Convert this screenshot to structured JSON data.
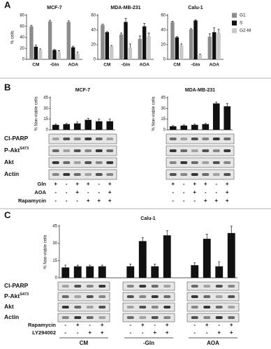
{
  "panel_labels": [
    "A",
    "B",
    "C"
  ],
  "chart_data": [
    {
      "type": "bar",
      "title": "MCF-7",
      "ylabel": "% cells",
      "categories": [
        "CM",
        "-Gln",
        "AOA"
      ],
      "series": [
        {
          "name": "G1",
          "color": "#8c8c8c",
          "values": [
            60,
            69,
            68
          ],
          "errors": [
            2,
            2,
            2
          ]
        },
        {
          "name": "S",
          "color": "#111111",
          "values": [
            23,
            17,
            22
          ],
          "errors": [
            3,
            1,
            2
          ]
        },
        {
          "name": "G2-M",
          "color": "#c8c8c8",
          "values": [
            17,
            14,
            10
          ],
          "errors": [
            2,
            2,
            3
          ]
        }
      ],
      "ylim": [
        0,
        80
      ],
      "yticks": [
        0,
        20,
        40,
        60,
        80
      ]
    },
    {
      "type": "bar",
      "title": "MDA-MB-231",
      "categories": [
        "CM",
        "-Gln",
        "AOA"
      ],
      "series": [
        {
          "name": "G1",
          "color": "#8c8c8c",
          "values": [
            47,
            34,
            28
          ],
          "errors": [
            1,
            2,
            4
          ]
        },
        {
          "name": "S",
          "color": "#111111",
          "values": [
            37,
            51,
            45
          ],
          "errors": [
            1,
            5,
            4
          ]
        },
        {
          "name": "G2-M",
          "color": "#c8c8c8",
          "values": [
            18,
            16,
            31
          ],
          "errors": [
            1,
            5,
            5
          ]
        }
      ],
      "ylim": [
        0,
        60
      ],
      "yticks": [
        0,
        20,
        40,
        60
      ]
    },
    {
      "type": "bar",
      "title": "Calu-1",
      "categories": [
        "CM",
        "-Gln",
        "AOA"
      ],
      "series": [
        {
          "name": "G1",
          "color": "#8c8c8c",
          "values": [
            51,
            41,
            31
          ],
          "errors": [
            1,
            1,
            4
          ]
        },
        {
          "name": "S",
          "color": "#111111",
          "values": [
            30,
            53,
            37
          ],
          "errors": [
            1,
            1,
            6
          ]
        },
        {
          "name": "G2-M",
          "color": "#c8c8c8",
          "values": [
            19,
            6,
            36
          ],
          "errors": [
            2,
            1,
            5
          ]
        }
      ],
      "ylim": [
        0,
        60
      ],
      "yticks": [
        0,
        20,
        40,
        60
      ],
      "legend": "right"
    },
    {
      "type": "bar",
      "title": "MCF-7",
      "ylabel": "% Non-viable cells",
      "categories": [
        null,
        null,
        null,
        null,
        null,
        null
      ],
      "values": [
        7,
        8,
        9,
        14,
        12,
        12
      ],
      "errors": [
        1,
        1,
        2,
        2,
        3,
        3
      ],
      "color": "#111111",
      "ylim": [
        0,
        45
      ],
      "yticks": [
        0,
        15,
        30,
        45
      ]
    },
    {
      "type": "bar",
      "title": "MDA-MB-231",
      "ylabel": "% Non-viable cells",
      "categories": [
        null,
        null,
        null,
        null,
        null,
        null
      ],
      "values": [
        5,
        6,
        7,
        8,
        37,
        33
      ],
      "errors": [
        1,
        1,
        1,
        1,
        2,
        4
      ],
      "color": "#111111",
      "ylim": [
        0,
        45
      ],
      "yticks": [
        0,
        15,
        30,
        45
      ]
    },
    {
      "type": "bar",
      "title": "Calu-1",
      "ylabel": "% Non-viable cells",
      "categories": [
        null,
        null,
        null,
        null,
        null,
        null,
        null,
        null,
        null,
        null,
        null,
        null
      ],
      "values": [
        9,
        10,
        10,
        10,
        10,
        32,
        10,
        37,
        11,
        34,
        10,
        39
      ],
      "errors": [
        2,
        1,
        1,
        1,
        2,
        3,
        2,
        4,
        2,
        4,
        4,
        6
      ],
      "color": "#111111",
      "ylim": [
        0,
        45
      ],
      "yticks": [
        0,
        15,
        30,
        45
      ]
    }
  ],
  "blots_b": {
    "rows": [
      {
        "text": "Cl-PARP"
      },
      {
        "text": "P-Akt",
        "sup": "S473"
      },
      {
        "text": "Akt"
      },
      {
        "text": "Actin"
      }
    ],
    "conditions": [
      {
        "name": "Gln",
        "signs": [
          "+",
          "-",
          "+",
          "+",
          "-",
          "+"
        ]
      },
      {
        "name": "AOA",
        "signs": [
          "-",
          "-",
          "+",
          "-",
          "-",
          "+"
        ]
      },
      {
        "name": "Rapamycin",
        "signs": [
          "-",
          "-",
          "-",
          "+",
          "+",
          "+"
        ]
      }
    ]
  },
  "blots_c": {
    "rows": [
      {
        "text": "Cl-PARP"
      },
      {
        "text": "P-Akt",
        "sup": "S473"
      },
      {
        "text": "Akt"
      },
      {
        "text": "Actin"
      }
    ],
    "conditions": [
      {
        "name": "Rapamycin",
        "signs": [
          "-",
          "+",
          "-",
          "+"
        ]
      },
      {
        "name": "LY294002",
        "signs": [
          "-",
          "-",
          "+",
          "+"
        ]
      }
    ],
    "groups": [
      "CM",
      "-Gln",
      "AOA"
    ]
  }
}
